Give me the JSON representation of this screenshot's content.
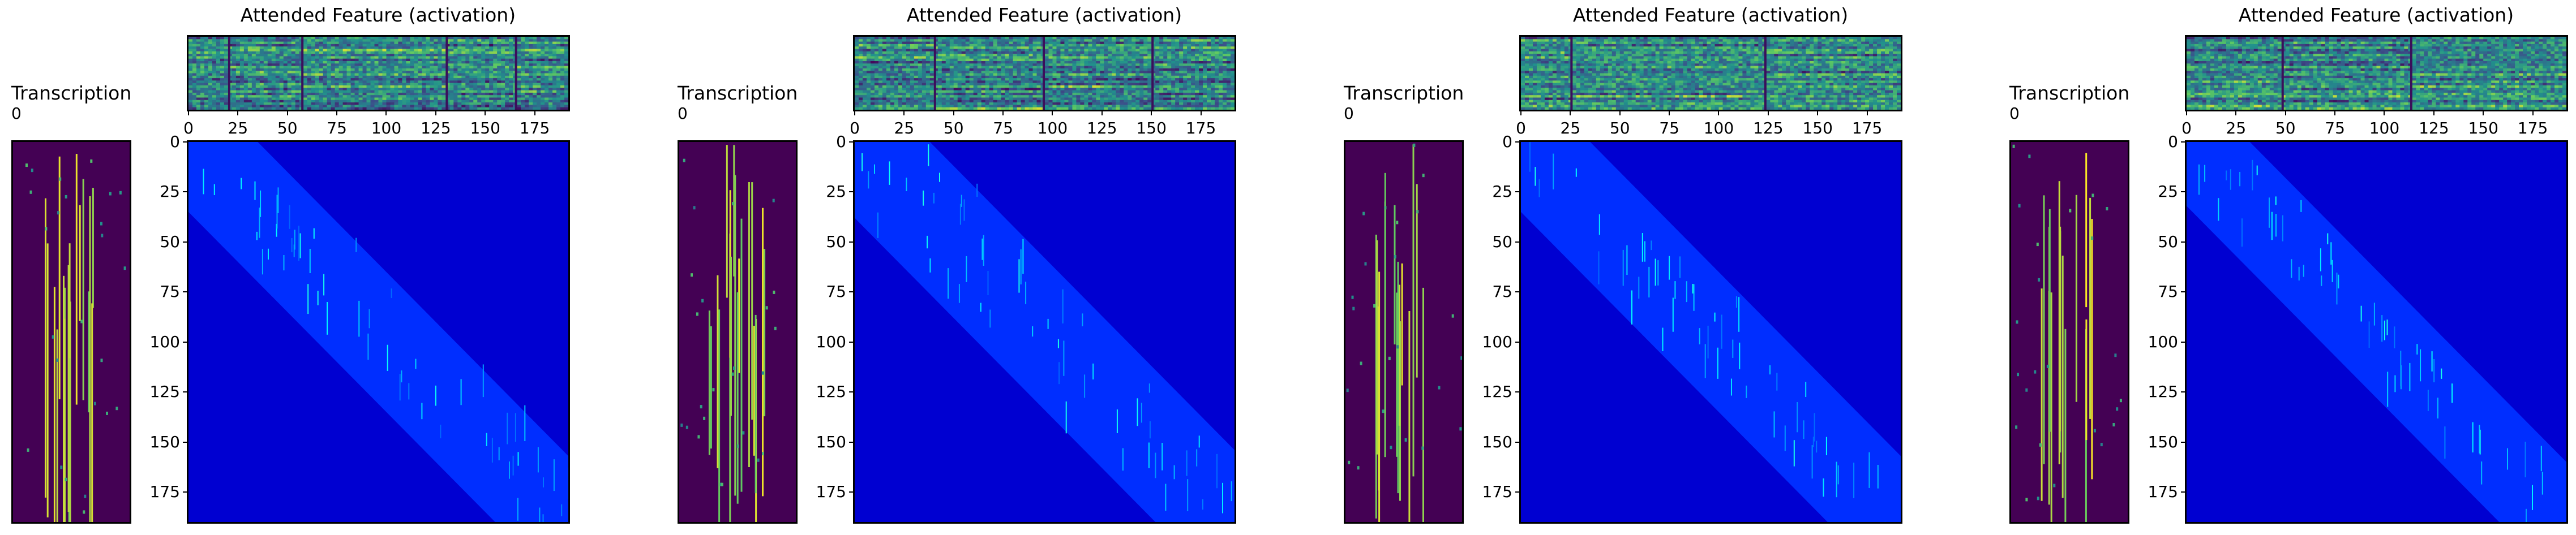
{
  "chart_data": [
    {
      "type": "heatmap",
      "subplots": [
        {
          "role": "feature",
          "title": "Attended Feature (activation)",
          "xticks": [
            0,
            25,
            50,
            75,
            100,
            125,
            150,
            175
          ],
          "xlim": [
            0,
            192
          ],
          "colormap": "viridis",
          "segment_breaks": [
            20,
            57,
            130,
            165
          ]
        },
        {
          "role": "transcription",
          "title": "Transcription",
          "yticks": [
            0
          ],
          "colormap": "viridis"
        },
        {
          "role": "attention",
          "title": "",
          "yticks": [
            0,
            25,
            50,
            75,
            100,
            125,
            150,
            175
          ],
          "ylim": [
            0,
            190
          ],
          "xlim": [
            0,
            192
          ],
          "colormap": "jet",
          "band_width": 35
        }
      ],
      "seed": 11
    },
    {
      "type": "heatmap",
      "subplots": [
        {
          "role": "feature",
          "title": "Attended Feature (activation)",
          "xticks": [
            0,
            25,
            50,
            75,
            100,
            125,
            150,
            175
          ],
          "xlim": [
            0,
            192
          ],
          "colormap": "viridis",
          "segment_breaks": [
            40,
            95,
            150
          ]
        },
        {
          "role": "transcription",
          "title": "Transcription",
          "yticks": [
            0
          ],
          "colormap": "viridis"
        },
        {
          "role": "attention",
          "title": "",
          "yticks": [
            0,
            25,
            50,
            75,
            100,
            125,
            150,
            175
          ],
          "ylim": [
            0,
            190
          ],
          "xlim": [
            0,
            192
          ],
          "colormap": "jet",
          "band_width": 38
        }
      ],
      "seed": 23
    },
    {
      "type": "heatmap",
      "subplots": [
        {
          "role": "feature",
          "title": "Attended Feature (activation)",
          "xticks": [
            0,
            25,
            50,
            75,
            100,
            125,
            150,
            175
          ],
          "xlim": [
            0,
            192
          ],
          "colormap": "viridis",
          "segment_breaks": [
            25,
            123
          ]
        },
        {
          "role": "transcription",
          "title": "Transcription",
          "yticks": [
            0
          ],
          "colormap": "viridis"
        },
        {
          "role": "attention",
          "title": "",
          "yticks": [
            0,
            25,
            50,
            75,
            100,
            125,
            150,
            175
          ],
          "ylim": [
            0,
            190
          ],
          "xlim": [
            0,
            192
          ],
          "colormap": "jet",
          "band_width": 35
        }
      ],
      "seed": 37
    },
    {
      "type": "heatmap",
      "subplots": [
        {
          "role": "feature",
          "title": "Attended Feature (activation)",
          "xticks": [
            0,
            25,
            50,
            75,
            100,
            125,
            150,
            175
          ],
          "xlim": [
            0,
            192
          ],
          "colormap": "viridis",
          "segment_breaks": [
            48,
            113
          ]
        },
        {
          "role": "transcription",
          "title": "Transcription",
          "yticks": [
            0
          ],
          "colormap": "viridis"
        },
        {
          "role": "attention",
          "title": "",
          "yticks": [
            0,
            25,
            50,
            75,
            100,
            125,
            150,
            175
          ],
          "ylim": [
            0,
            190
          ],
          "xlim": [
            0,
            192
          ],
          "colormap": "jet",
          "band_width": 32
        }
      ],
      "seed": 53
    }
  ]
}
